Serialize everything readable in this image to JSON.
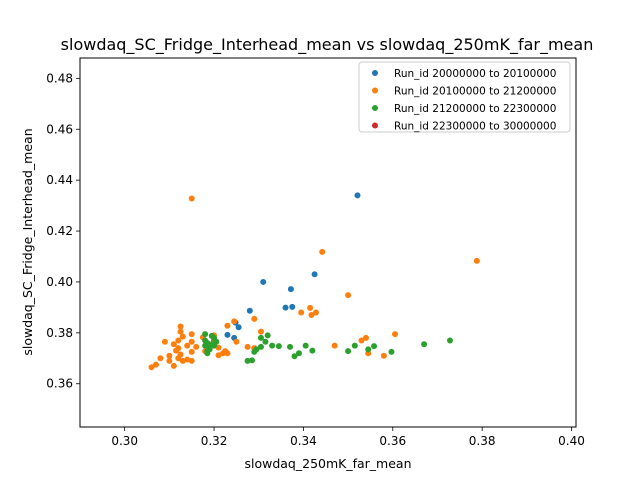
{
  "chart_data": {
    "type": "scatter",
    "title": "slowdaq_SC_Fridge_Interhead_mean vs slowdaq_250mK_far_mean",
    "xlabel": "slowdaq_250mK_far_mean",
    "ylabel": "slowdaq_SC_Fridge_Interhead_mean",
    "xlim": [
      0.29,
      0.401
    ],
    "ylim": [
      0.343,
      0.488
    ],
    "xticks": [
      "0.30",
      "0.32",
      "0.34",
      "0.36",
      "0.38",
      "0.40"
    ],
    "yticks": [
      "0.36",
      "0.38",
      "0.40",
      "0.42",
      "0.44",
      "0.46",
      "0.48"
    ],
    "grid": false,
    "legend_position": "top-right",
    "series": [
      {
        "name": "Run_id 20000000 to 20100000",
        "color": "#1f77b4",
        "points": [
          [
            0.3521,
            0.434
          ],
          [
            0.3425,
            0.403
          ],
          [
            0.331,
            0.4
          ],
          [
            0.3372,
            0.3972
          ],
          [
            0.3375,
            0.3902
          ],
          [
            0.336,
            0.3899
          ],
          [
            0.328,
            0.3887
          ],
          [
            0.3248,
            0.384
          ],
          [
            0.3255,
            0.3822
          ],
          [
            0.323,
            0.3792
          ],
          [
            0.32,
            0.377
          ],
          [
            0.3245,
            0.378
          ]
        ]
      },
      {
        "name": "Run_id 20100000 to 21200000",
        "color": "#ff7f0e",
        "points": [
          [
            0.315,
            0.4328
          ],
          [
            0.3442,
            0.4118
          ],
          [
            0.3788,
            0.4083
          ],
          [
            0.35,
            0.3948
          ],
          [
            0.3415,
            0.3898
          ],
          [
            0.3395,
            0.388
          ],
          [
            0.3428,
            0.388
          ],
          [
            0.3418,
            0.387
          ],
          [
            0.329,
            0.3855
          ],
          [
            0.3245,
            0.3845
          ],
          [
            0.3125,
            0.3825
          ],
          [
            0.323,
            0.3828
          ],
          [
            0.3125,
            0.3805
          ],
          [
            0.315,
            0.3795
          ],
          [
            0.3305,
            0.3805
          ],
          [
            0.3605,
            0.3795
          ],
          [
            0.313,
            0.3785
          ],
          [
            0.3175,
            0.3782
          ],
          [
            0.354,
            0.378
          ],
          [
            0.312,
            0.377
          ],
          [
            0.315,
            0.3765
          ],
          [
            0.32,
            0.379
          ],
          [
            0.353,
            0.377
          ],
          [
            0.309,
            0.3765
          ],
          [
            0.311,
            0.3755
          ],
          [
            0.314,
            0.375
          ],
          [
            0.32,
            0.376
          ],
          [
            0.325,
            0.3765
          ],
          [
            0.347,
            0.375
          ],
          [
            0.312,
            0.374
          ],
          [
            0.316,
            0.3745
          ],
          [
            0.319,
            0.374
          ],
          [
            0.321,
            0.3742
          ],
          [
            0.3275,
            0.3745
          ],
          [
            0.329,
            0.374
          ],
          [
            0.3115,
            0.373
          ],
          [
            0.315,
            0.3725
          ],
          [
            0.318,
            0.3728
          ],
          [
            0.3225,
            0.3728
          ],
          [
            0.3545,
            0.372
          ],
          [
            0.3125,
            0.3715
          ],
          [
            0.31,
            0.371
          ],
          [
            0.323,
            0.372
          ],
          [
            0.321,
            0.3712
          ],
          [
            0.312,
            0.37
          ],
          [
            0.314,
            0.3695
          ],
          [
            0.358,
            0.371
          ],
          [
            0.308,
            0.37
          ],
          [
            0.315,
            0.369
          ],
          [
            0.313,
            0.369
          ],
          [
            0.307,
            0.3675
          ],
          [
            0.31,
            0.369
          ],
          [
            0.311,
            0.367
          ],
          [
            0.306,
            0.3665
          ],
          [
            0.322,
            0.372
          ]
        ]
      },
      {
        "name": "Run_id 21200000 to 22300000",
        "color": "#2ca02c",
        "points": [
          [
            0.318,
            0.3795
          ],
          [
            0.3195,
            0.3788
          ],
          [
            0.32,
            0.378
          ],
          [
            0.332,
            0.379
          ],
          [
            0.3305,
            0.378
          ],
          [
            0.318,
            0.377
          ],
          [
            0.3185,
            0.376
          ],
          [
            0.3205,
            0.3765
          ],
          [
            0.3728,
            0.377
          ],
          [
            0.3315,
            0.3765
          ],
          [
            0.318,
            0.375
          ],
          [
            0.32,
            0.375
          ],
          [
            0.319,
            0.3745
          ],
          [
            0.333,
            0.375
          ],
          [
            0.3345,
            0.3748
          ],
          [
            0.337,
            0.3745
          ],
          [
            0.367,
            0.3755
          ],
          [
            0.3405,
            0.375
          ],
          [
            0.3515,
            0.375
          ],
          [
            0.3558,
            0.3748
          ],
          [
            0.319,
            0.3735
          ],
          [
            0.3185,
            0.3728
          ],
          [
            0.3295,
            0.3735
          ],
          [
            0.3305,
            0.3745
          ],
          [
            0.342,
            0.373
          ],
          [
            0.35,
            0.3728
          ],
          [
            0.3545,
            0.3735
          ],
          [
            0.3597,
            0.3725
          ],
          [
            0.3185,
            0.372
          ],
          [
            0.339,
            0.372
          ],
          [
            0.338,
            0.3708
          ],
          [
            0.329,
            0.3725
          ],
          [
            0.3275,
            0.369
          ],
          [
            0.3285,
            0.3692
          ],
          [
            0.3195,
            0.3755
          ]
        ]
      },
      {
        "name": "Run_id 22300000 to 30000000",
        "color": "#d62728",
        "points": []
      }
    ]
  }
}
